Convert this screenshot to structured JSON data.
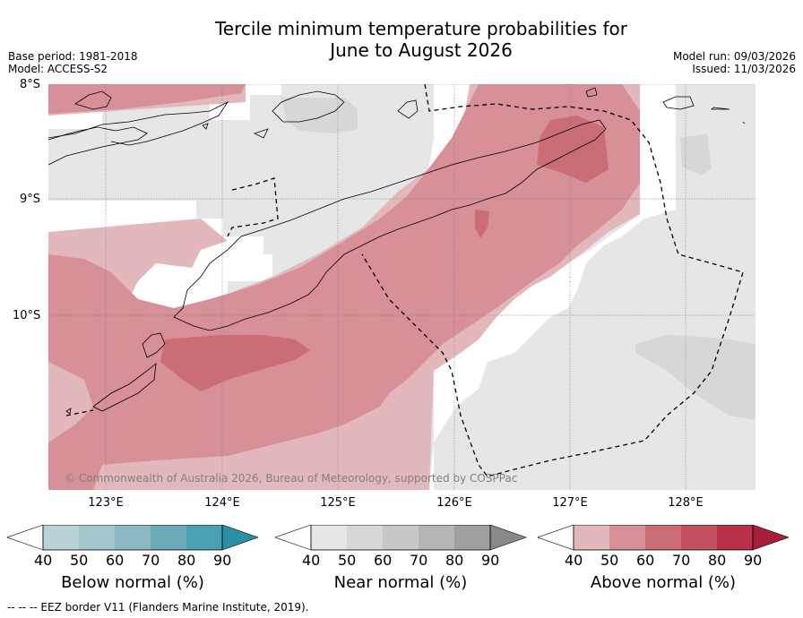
{
  "title": {
    "line1": "Tercile minimum temperature probabilities for",
    "line2": "June to August 2026"
  },
  "meta": {
    "base_period": "Base period: 1981-2018",
    "model": "Model: ACCESS-S2",
    "model_run": "Model run: 09/03/2026",
    "issued": "Issued: 11/03/2026"
  },
  "map": {
    "lat_labels": [
      "8°S",
      "9°S",
      "10°S"
    ],
    "lon_labels": [
      "123°E",
      "124°E",
      "125°E",
      "126°E",
      "127°E",
      "128°E"
    ],
    "copyright": "© Commonwealth of Australia 2026, Bureau of Meteorology, supported by COSPPac"
  },
  "colorbars": [
    {
      "label": "Below normal (%)",
      "ticks": [
        "40",
        "50",
        "60",
        "70",
        "80",
        "90"
      ],
      "colors": [
        "#ffffff",
        "#b9d2d8",
        "#a3c6cc",
        "#8bb8c2",
        "#6caab6",
        "#4aa0b0",
        "#2a8fa2"
      ]
    },
    {
      "label": "Near normal (%)",
      "ticks": [
        "40",
        "50",
        "60",
        "70",
        "80",
        "90"
      ],
      "colors": [
        "#ffffff",
        "#e6e6e6",
        "#d7d7d7",
        "#c7c7c7",
        "#b5b5b5",
        "#a0a0a0",
        "#888888"
      ]
    },
    {
      "label": "Above normal (%)",
      "ticks": [
        "40",
        "50",
        "60",
        "70",
        "80",
        "90"
      ],
      "colors": [
        "#ffffff",
        "#e3b8bd",
        "#d78f98",
        "#ca6d77",
        "#c24f5e",
        "#b8304a",
        "#a81d3a"
      ]
    }
  ],
  "footnote": "--  --  -- EEZ border V11 (Flanders Marine Institute, 2019)."
}
